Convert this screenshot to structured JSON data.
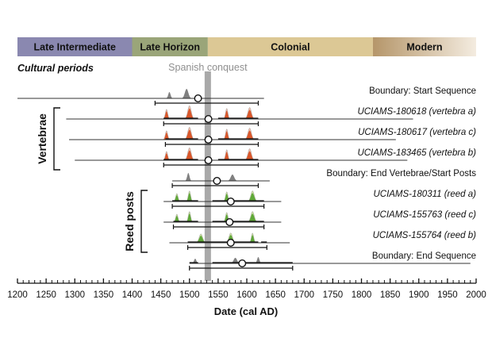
{
  "chart_data": {
    "type": "area",
    "title": "",
    "subtitle": "Cultural periods",
    "xlabel": "Date (cal AD)",
    "ylabel": "",
    "xlim": [
      1200,
      2000
    ],
    "x_ticks": [
      1200,
      1250,
      1300,
      1350,
      1400,
      1450,
      1500,
      1550,
      1600,
      1650,
      1700,
      1750,
      1800,
      1850,
      1900,
      1950,
      2000
    ],
    "minor_tick_step": 10,
    "periods": [
      {
        "label": "Late Intermediate",
        "start": 1200,
        "end": 1400,
        "color": "#8a88b0"
      },
      {
        "label": "Late Horizon",
        "start": 1400,
        "end": 1532,
        "color": "#9aa579"
      },
      {
        "label": "Colonial",
        "start": 1532,
        "end": 1820,
        "color": "#dcc895"
      },
      {
        "label": "Modern",
        "start": 1820,
        "end": 2000,
        "color": "#b5966a"
      }
    ],
    "annotation": {
      "label": "Spanish conquest",
      "year": 1532
    },
    "groups": [
      {
        "label": "Vertebrae",
        "rows": [
          1,
          3
        ]
      },
      {
        "label": "Reed posts",
        "rows": [
          5,
          7
        ]
      }
    ],
    "series": [
      {
        "name": "Boundary: Start Sequence",
        "style": "boundary",
        "baseline": [
          1200,
          1630
        ],
        "range": [
          1440,
          1620
        ],
        "median": 1515,
        "peaks": [
          [
            1465,
            8,
            2
          ],
          [
            1495,
            12,
            3
          ]
        ]
      },
      {
        "name": "UCIAMS-180618 (vertebra a)",
        "style": "vertebra",
        "baseline": [
          1285,
          1890
        ],
        "range": [
          1455,
          1620
        ],
        "median": 1533,
        "sub_ranges": [
          [
            1455,
            1515
          ],
          [
            1550,
            1620
          ]
        ],
        "peaks": [
          [
            1460,
            11,
            2
          ],
          [
            1500,
            15,
            3
          ],
          [
            1565,
            12,
            2
          ],
          [
            1605,
            13,
            3
          ]
        ]
      },
      {
        "name": "UCIAMS-180617 (vertebra c)",
        "style": "vertebra",
        "baseline": [
          1290,
          1860
        ],
        "range": [
          1458,
          1620
        ],
        "median": 1533,
        "sub_ranges": [
          [
            1458,
            1515
          ],
          [
            1550,
            1620
          ]
        ],
        "peaks": [
          [
            1460,
            10,
            2
          ],
          [
            1500,
            14,
            3
          ],
          [
            1565,
            12,
            2
          ],
          [
            1605,
            13,
            3
          ]
        ]
      },
      {
        "name": "UCIAMS-183465 (vertebra b)",
        "style": "vertebra",
        "baseline": [
          1300,
          1880
        ],
        "range": [
          1455,
          1620
        ],
        "median": 1533,
        "sub_ranges": [
          [
            1455,
            1515
          ],
          [
            1550,
            1620
          ]
        ],
        "peaks": [
          [
            1460,
            10,
            2
          ],
          [
            1500,
            14,
            3
          ],
          [
            1565,
            12,
            2
          ],
          [
            1605,
            13,
            3
          ]
        ]
      },
      {
        "name": "Boundary: End Vertebrae/Start Posts",
        "style": "boundary",
        "baseline": [
          1470,
          1640
        ],
        "range": [
          1470,
          1620
        ],
        "median": 1548,
        "peaks": [
          [
            1498,
            10,
            2
          ],
          [
            1575,
            8,
            3
          ]
        ]
      },
      {
        "name": "UCIAMS-180311 (reed a)",
        "style": "reed",
        "baseline": [
          1455,
          1660
        ],
        "range": [
          1470,
          1630
        ],
        "median": 1572,
        "sub_ranges": [
          [
            1470,
            1515
          ],
          [
            1540,
            1630
          ]
        ],
        "peaks": [
          [
            1478,
            9,
            2
          ],
          [
            1500,
            12,
            2
          ],
          [
            1565,
            11,
            2
          ],
          [
            1610,
            12,
            3
          ]
        ]
      },
      {
        "name": "UCIAMS-155763 (reed c)",
        "style": "reed",
        "baseline": [
          1455,
          1660
        ],
        "range": [
          1472,
          1630
        ],
        "median": 1570,
        "sub_ranges": [
          [
            1472,
            1515
          ],
          [
            1540,
            1630
          ]
        ],
        "peaks": [
          [
            1478,
            9,
            2
          ],
          [
            1500,
            12,
            2
          ],
          [
            1565,
            11,
            2
          ],
          [
            1610,
            12,
            3
          ]
        ]
      },
      {
        "name": "UCIAMS-155764 (reed b)",
        "style": "reed",
        "baseline": [
          1465,
          1675
        ],
        "range": [
          1497,
          1635
        ],
        "median": 1572,
        "sub_ranges": [
          [
            1497,
            1620
          ],
          [
            1625,
            1635
          ]
        ],
        "peaks": [
          [
            1520,
            10,
            3
          ],
          [
            1572,
            11,
            3
          ],
          [
            1610,
            11,
            2
          ]
        ]
      },
      {
        "name": "Boundary: End Sequence",
        "style": "boundary",
        "baseline": [
          1500,
          1990
        ],
        "range": [
          1500,
          1680
        ],
        "median": 1592,
        "sub_ranges": [
          [
            1500,
            1515
          ],
          [
            1540,
            1680
          ]
        ],
        "peaks": [
          [
            1510,
            6,
            2
          ],
          [
            1580,
            7,
            3
          ],
          [
            1620,
            8,
            2
          ]
        ]
      }
    ]
  },
  "colors": {
    "boundary_fill": "#808080",
    "vertebra_light": "#f2c2b0",
    "vertebra_dark": "#d9572b",
    "reed_light": "#cfe3a6",
    "reed_dark": "#5fa838",
    "conquest_bar": "#a9a9a9",
    "line": "#333333"
  }
}
